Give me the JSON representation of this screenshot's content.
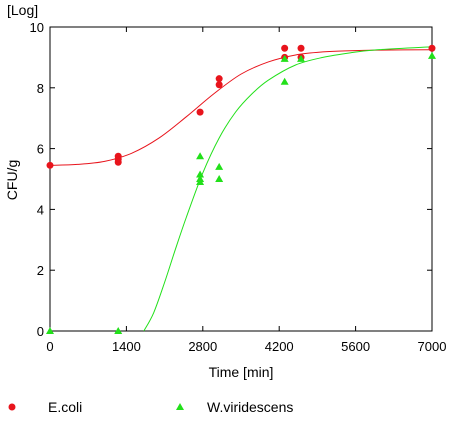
{
  "chart_data": {
    "type": "scatter",
    "xlabel": "Time [min]",
    "ylabel": "CFU/g",
    "y_unit_label": "[Log]",
    "xlim": [
      0,
      7000
    ],
    "ylim": [
      0,
      10
    ],
    "x_ticks": [
      0,
      1400,
      2800,
      4200,
      5600,
      7000
    ],
    "y_ticks": [
      0,
      2,
      4,
      6,
      8,
      10
    ],
    "grid": false,
    "legend_position": "bottom",
    "series": [
      {
        "name": "E.coli",
        "marker": "circle",
        "color": "#e8141c",
        "points": [
          [
            0,
            5.45
          ],
          [
            1250,
            5.55
          ],
          [
            1250,
            5.65
          ],
          [
            1250,
            5.75
          ],
          [
            2750,
            7.2
          ],
          [
            3100,
            8.1
          ],
          [
            3100,
            8.3
          ],
          [
            4300,
            9.0
          ],
          [
            4300,
            9.3
          ],
          [
            4600,
            9.0
          ],
          [
            4600,
            9.3
          ],
          [
            7000,
            9.3
          ]
        ],
        "fit_curve": [
          [
            0,
            5.45
          ],
          [
            500,
            5.48
          ],
          [
            1000,
            5.58
          ],
          [
            1500,
            5.85
          ],
          [
            2000,
            6.35
          ],
          [
            2500,
            7.05
          ],
          [
            3000,
            7.8
          ],
          [
            3500,
            8.45
          ],
          [
            4000,
            8.85
          ],
          [
            4500,
            9.08
          ],
          [
            5000,
            9.18
          ],
          [
            5500,
            9.22
          ],
          [
            6000,
            9.24
          ],
          [
            7000,
            9.25
          ]
        ]
      },
      {
        "name": "W.viridescens",
        "marker": "triangle",
        "color": "#22e01a",
        "points": [
          [
            0,
            0
          ],
          [
            1250,
            0
          ],
          [
            2750,
            4.9
          ],
          [
            2750,
            5.0
          ],
          [
            2750,
            5.15
          ],
          [
            2750,
            5.75
          ],
          [
            3100,
            5.0
          ],
          [
            3100,
            5.4
          ],
          [
            4300,
            8.2
          ],
          [
            4300,
            8.95
          ],
          [
            4600,
            8.95
          ],
          [
            7000,
            9.05
          ]
        ],
        "fit_curve": [
          [
            1720,
            0
          ],
          [
            1900,
            0.6
          ],
          [
            2100,
            1.6
          ],
          [
            2300,
            2.7
          ],
          [
            2500,
            3.75
          ],
          [
            2800,
            5.2
          ],
          [
            3100,
            6.35
          ],
          [
            3400,
            7.2
          ],
          [
            3700,
            7.8
          ],
          [
            4000,
            8.25
          ],
          [
            4500,
            8.75
          ],
          [
            5000,
            9.0
          ],
          [
            5500,
            9.15
          ],
          [
            6000,
            9.25
          ],
          [
            7000,
            9.35
          ]
        ]
      }
    ]
  }
}
